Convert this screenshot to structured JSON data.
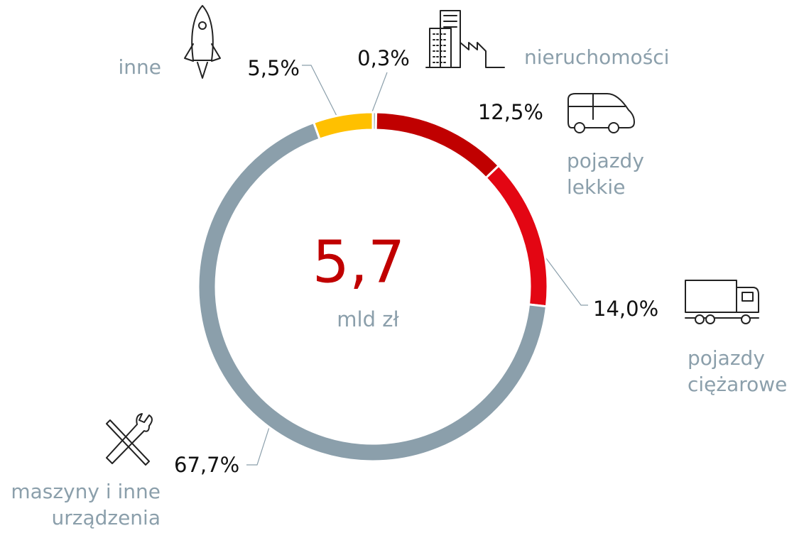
{
  "chart_data": {
    "type": "donut",
    "categories": [
      [
        "nieruchomości"
      ],
      [
        "pojazdy",
        "lekkie"
      ],
      [
        "pojazdy",
        "ciężarowe"
      ],
      [
        "maszyny i inne",
        "urządzenia"
      ],
      [
        "inne"
      ]
    ],
    "values": [
      0.3,
      12.5,
      14.0,
      67.7,
      5.5
    ],
    "value_labels": [
      "0,3%",
      "12,5%",
      "14,0%",
      "67,7%",
      "5,5%"
    ],
    "colors": [
      "#a3b1b9",
      "#c00000",
      "#e30613",
      "#8b9fab",
      "#ffc000"
    ],
    "total": 5.7,
    "total_label": "5,7",
    "total_unit": "mld zł"
  }
}
